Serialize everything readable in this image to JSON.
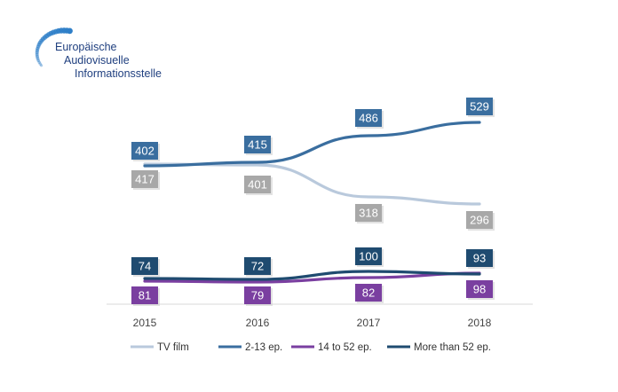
{
  "logo": {
    "lines": [
      "Europäische",
      "Audiovisuelle",
      "Informationsstelle"
    ],
    "accent": "#2f7fc8"
  },
  "chart_data": {
    "type": "line",
    "categories": [
      "2015",
      "2016",
      "2017",
      "2018"
    ],
    "series": [
      {
        "name": "TV film",
        "color": "#b9c9dc",
        "label_color": "#a8a8a8",
        "values": [
          417,
          401,
          318,
          296
        ]
      },
      {
        "name": "2-13 ep.",
        "color": "#3a6e9f",
        "label_color": "#3a6e9f",
        "values": [
          402,
          415,
          486,
          529
        ]
      },
      {
        "name": "14 to 52 ep.",
        "color": "#7a3fa0",
        "label_color": "#7a3fa0",
        "values": [
          81,
          79,
          82,
          98
        ]
      },
      {
        "name": "More than 52 ep.",
        "color": "#1f4b70",
        "label_color": "#1f4b70",
        "values": [
          74,
          72,
          100,
          93
        ]
      }
    ],
    "grid": false,
    "legend_position": "bottom"
  }
}
